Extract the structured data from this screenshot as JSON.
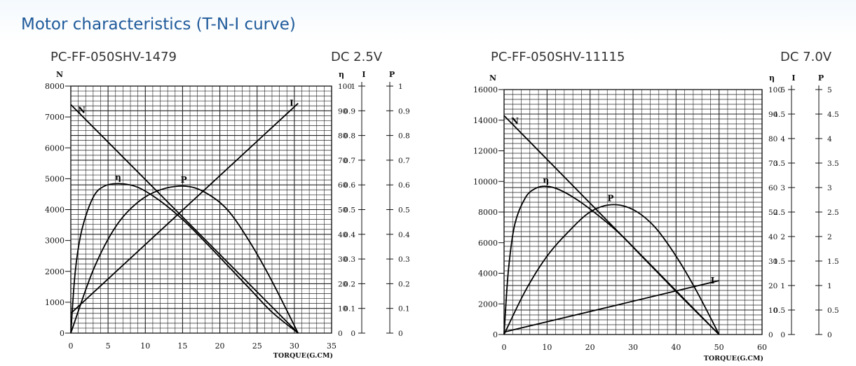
{
  "page": {
    "title": "Motor characteristics (T-N-I curve)"
  },
  "chart_data": [
    {
      "type": "line",
      "model": "PC-FF-050SHV-1479",
      "voltage": "DC  2.5V",
      "xlabel": "TORQUE(G.CM)",
      "ylabel": "N",
      "right_axis_labels": [
        "η",
        "I",
        "P"
      ],
      "xlim": [
        0,
        35
      ],
      "x_ticks": [
        "0",
        "5",
        "10",
        "15",
        "20",
        "25",
        "30",
        "35"
      ],
      "ylim": [
        0,
        8000
      ],
      "y_ticks": [
        "0",
        "1000",
        "2000",
        "3000",
        "4000",
        "5000",
        "6000",
        "7000",
        "8000"
      ],
      "eta_ticks": [
        "0",
        "10",
        "20",
        "30",
        "40",
        "50",
        "60",
        "70",
        "80",
        "90",
        "100"
      ],
      "i_ticks": [
        "0",
        "0.1",
        "0.2",
        "0.3",
        "0.4",
        "0.5",
        "0.6",
        "0.7",
        "0.8",
        "0.9",
        "1"
      ],
      "p_ticks": [
        "0",
        "0.1",
        "0.2",
        "0.3",
        "0.4",
        "0.5",
        "0.6",
        "0.7",
        "0.8",
        "0.9",
        "1"
      ],
      "grid": true,
      "series": [
        {
          "name": "N",
          "axis": "N",
          "x": [
            0,
            30.5
          ],
          "values": [
            7400,
            0
          ]
        },
        {
          "name": "I",
          "axis": "I",
          "x": [
            0,
            30.5
          ],
          "values": [
            0.08,
            0.93
          ]
        },
        {
          "name": "η",
          "axis": "η",
          "x": [
            0,
            0.6,
            1.5,
            3,
            4.5,
            6.5,
            9,
            12,
            15,
            18,
            21,
            24,
            27,
            30.5
          ],
          "values": [
            0,
            25,
            42,
            55,
            59.5,
            60.5,
            59,
            53.5,
            46,
            37,
            27.5,
            18,
            8.5,
            0
          ]
        },
        {
          "name": "P",
          "axis": "P",
          "x": [
            0,
            3,
            6,
            9,
            12,
            15.3,
            18,
            21,
            24,
            27,
            30.5
          ],
          "values": [
            0,
            0.255,
            0.43,
            0.53,
            0.58,
            0.595,
            0.57,
            0.5,
            0.37,
            0.21,
            0
          ]
        }
      ]
    },
    {
      "type": "line",
      "model": "PC-FF-050SHV-11115",
      "voltage": "DC 7.0V",
      "xlabel": "TORQUE(G.CM)",
      "ylabel": "N",
      "right_axis_labels": [
        "η",
        "I",
        "P"
      ],
      "xlim": [
        0,
        60
      ],
      "x_ticks": [
        "0",
        "10",
        "20",
        "30",
        "40",
        "50",
        "60"
      ],
      "ylim": [
        0,
        16000
      ],
      "y_ticks": [
        "0",
        "2000",
        "4000",
        "6000",
        "8000",
        "10000",
        "12000",
        "14000",
        "16000"
      ],
      "eta_ticks": [
        "0",
        "10",
        "20",
        "30",
        "40",
        "50",
        "60",
        "70",
        "80",
        "90",
        "100"
      ],
      "i_ticks": [
        "0",
        "0.5",
        "1",
        "1.5",
        "2",
        "2.5",
        "3",
        "3.5",
        "4",
        "4.5",
        "5"
      ],
      "p_ticks": [
        "0",
        "0.5",
        "1",
        "1.5",
        "2",
        "2.5",
        "3",
        "3.5",
        "4",
        "4.5",
        "5"
      ],
      "grid": true,
      "series": [
        {
          "name": "N",
          "axis": "N",
          "x": [
            0,
            50
          ],
          "values": [
            14300,
            0
          ]
        },
        {
          "name": "I",
          "axis": "I",
          "x": [
            0,
            50
          ],
          "values": [
            0.05,
            1.1
          ]
        },
        {
          "name": "η",
          "axis": "η",
          "x": [
            0,
            1,
            2.5,
            5,
            7.5,
            10,
            13,
            17,
            22,
            27,
            32,
            37,
            42,
            46,
            50
          ],
          "values": [
            0,
            26,
            45,
            56,
            59.8,
            60.5,
            59,
            55,
            48.5,
            41,
            32,
            23,
            14,
            7,
            0
          ]
        },
        {
          "name": "P",
          "axis": "P",
          "x": [
            0,
            5,
            10,
            15,
            20,
            25,
            30,
            35,
            40,
            45,
            50
          ],
          "values": [
            0,
            0.9,
            1.6,
            2.1,
            2.5,
            2.65,
            2.55,
            2.2,
            1.6,
            0.85,
            0
          ]
        }
      ]
    }
  ]
}
